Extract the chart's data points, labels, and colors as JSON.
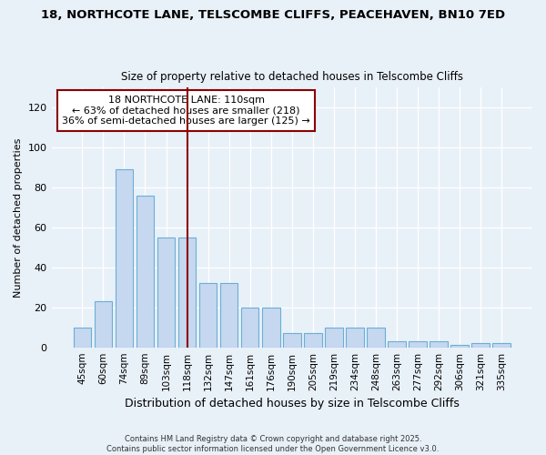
{
  "title1": "18, NORTHCOTE LANE, TELSCOMBE CLIFFS, PEACEHAVEN, BN10 7ED",
  "title2": "Size of property relative to detached houses in Telscombe Cliffs",
  "xlabel": "Distribution of detached houses by size in Telscombe Cliffs",
  "ylabel": "Number of detached properties",
  "categories": [
    "45sqm",
    "60sqm",
    "74sqm",
    "89sqm",
    "103sqm",
    "118sqm",
    "132sqm",
    "147sqm",
    "161sqm",
    "176sqm",
    "190sqm",
    "205sqm",
    "219sqm",
    "234sqm",
    "248sqm",
    "263sqm",
    "277sqm",
    "292sqm",
    "306sqm",
    "321sqm",
    "335sqm"
  ],
  "values": [
    10,
    23,
    89,
    76,
    55,
    55,
    32,
    32,
    20,
    20,
    7,
    7,
    10,
    10,
    10,
    3,
    3,
    3,
    1,
    2,
    2
  ],
  "bar_color": "#c5d8ef",
  "bar_edge_color": "#6baed6",
  "highlight_bar_index": 5,
  "highlight_color": "#8b0000",
  "annotation_title": "18 NORTHCOTE LANE: 110sqm",
  "annotation_line1": "← 63% of detached houses are smaller (218)",
  "annotation_line2": "36% of semi-detached houses are larger (125) →",
  "ylim": [
    0,
    130
  ],
  "yticks": [
    0,
    20,
    40,
    60,
    80,
    100,
    120
  ],
  "background_color": "#e8f0f8",
  "grid_color": "#ffffff",
  "footer1": "Contains HM Land Registry data © Crown copyright and database right 2025.",
  "footer2": "Contains public sector information licensed under the Open Government Licence v3.0."
}
